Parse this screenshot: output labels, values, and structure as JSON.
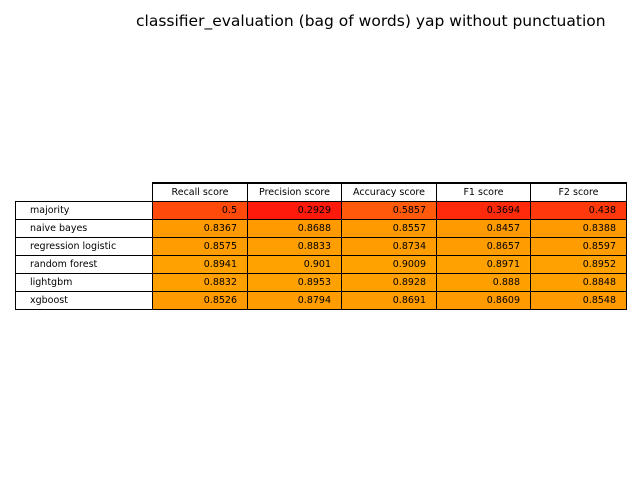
{
  "chart_data": {
    "type": "table",
    "title": "classifier_evaluation (bag of words) yap without punctuation",
    "columns": [
      "Recall score",
      "Precision score",
      "Accuracy score",
      "F1 score",
      "F2 score"
    ],
    "rows": [
      {
        "label": "majority",
        "values": [
          "0.5",
          "0.2929",
          "0.5857",
          "0.3694",
          "0.438"
        ],
        "colors": [
          "#ff4a0b",
          "#ff1a0b",
          "#ff5a0b",
          "#ff2a0b",
          "#ff390b"
        ]
      },
      {
        "label": "naive bayes",
        "values": [
          "0.8367",
          "0.8688",
          "0.8557",
          "0.8457",
          "0.8388"
        ],
        "colors": [
          "#ff9a00",
          "#ff9a00",
          "#ff9a00",
          "#ff9a00",
          "#ff9a00"
        ]
      },
      {
        "label": "regression logistic",
        "values": [
          "0.8575",
          "0.8833",
          "0.8734",
          "0.8657",
          "0.8597"
        ],
        "colors": [
          "#ff9c00",
          "#ff9e00",
          "#ff9d00",
          "#ff9c00",
          "#ff9c00"
        ]
      },
      {
        "label": "random forest",
        "values": [
          "0.8941",
          "0.901",
          "0.9009",
          "0.8971",
          "0.8952"
        ],
        "colors": [
          "#ffa100",
          "#ffa200",
          "#ffa200",
          "#ffa100",
          "#ffa100"
        ]
      },
      {
        "label": "lightgbm",
        "values": [
          "0.8832",
          "0.8953",
          "0.8928",
          "0.888",
          "0.8848"
        ],
        "colors": [
          "#ff9f00",
          "#ffa100",
          "#ffa000",
          "#ffa000",
          "#ff9f00"
        ]
      },
      {
        "label": "xgboost",
        "values": [
          "0.8526",
          "0.8794",
          "0.8691",
          "0.8609",
          "0.8548"
        ],
        "colors": [
          "#ff9b00",
          "#ff9d00",
          "#ff9c00",
          "#ff9b00",
          "#ff9b00"
        ]
      }
    ]
  }
}
